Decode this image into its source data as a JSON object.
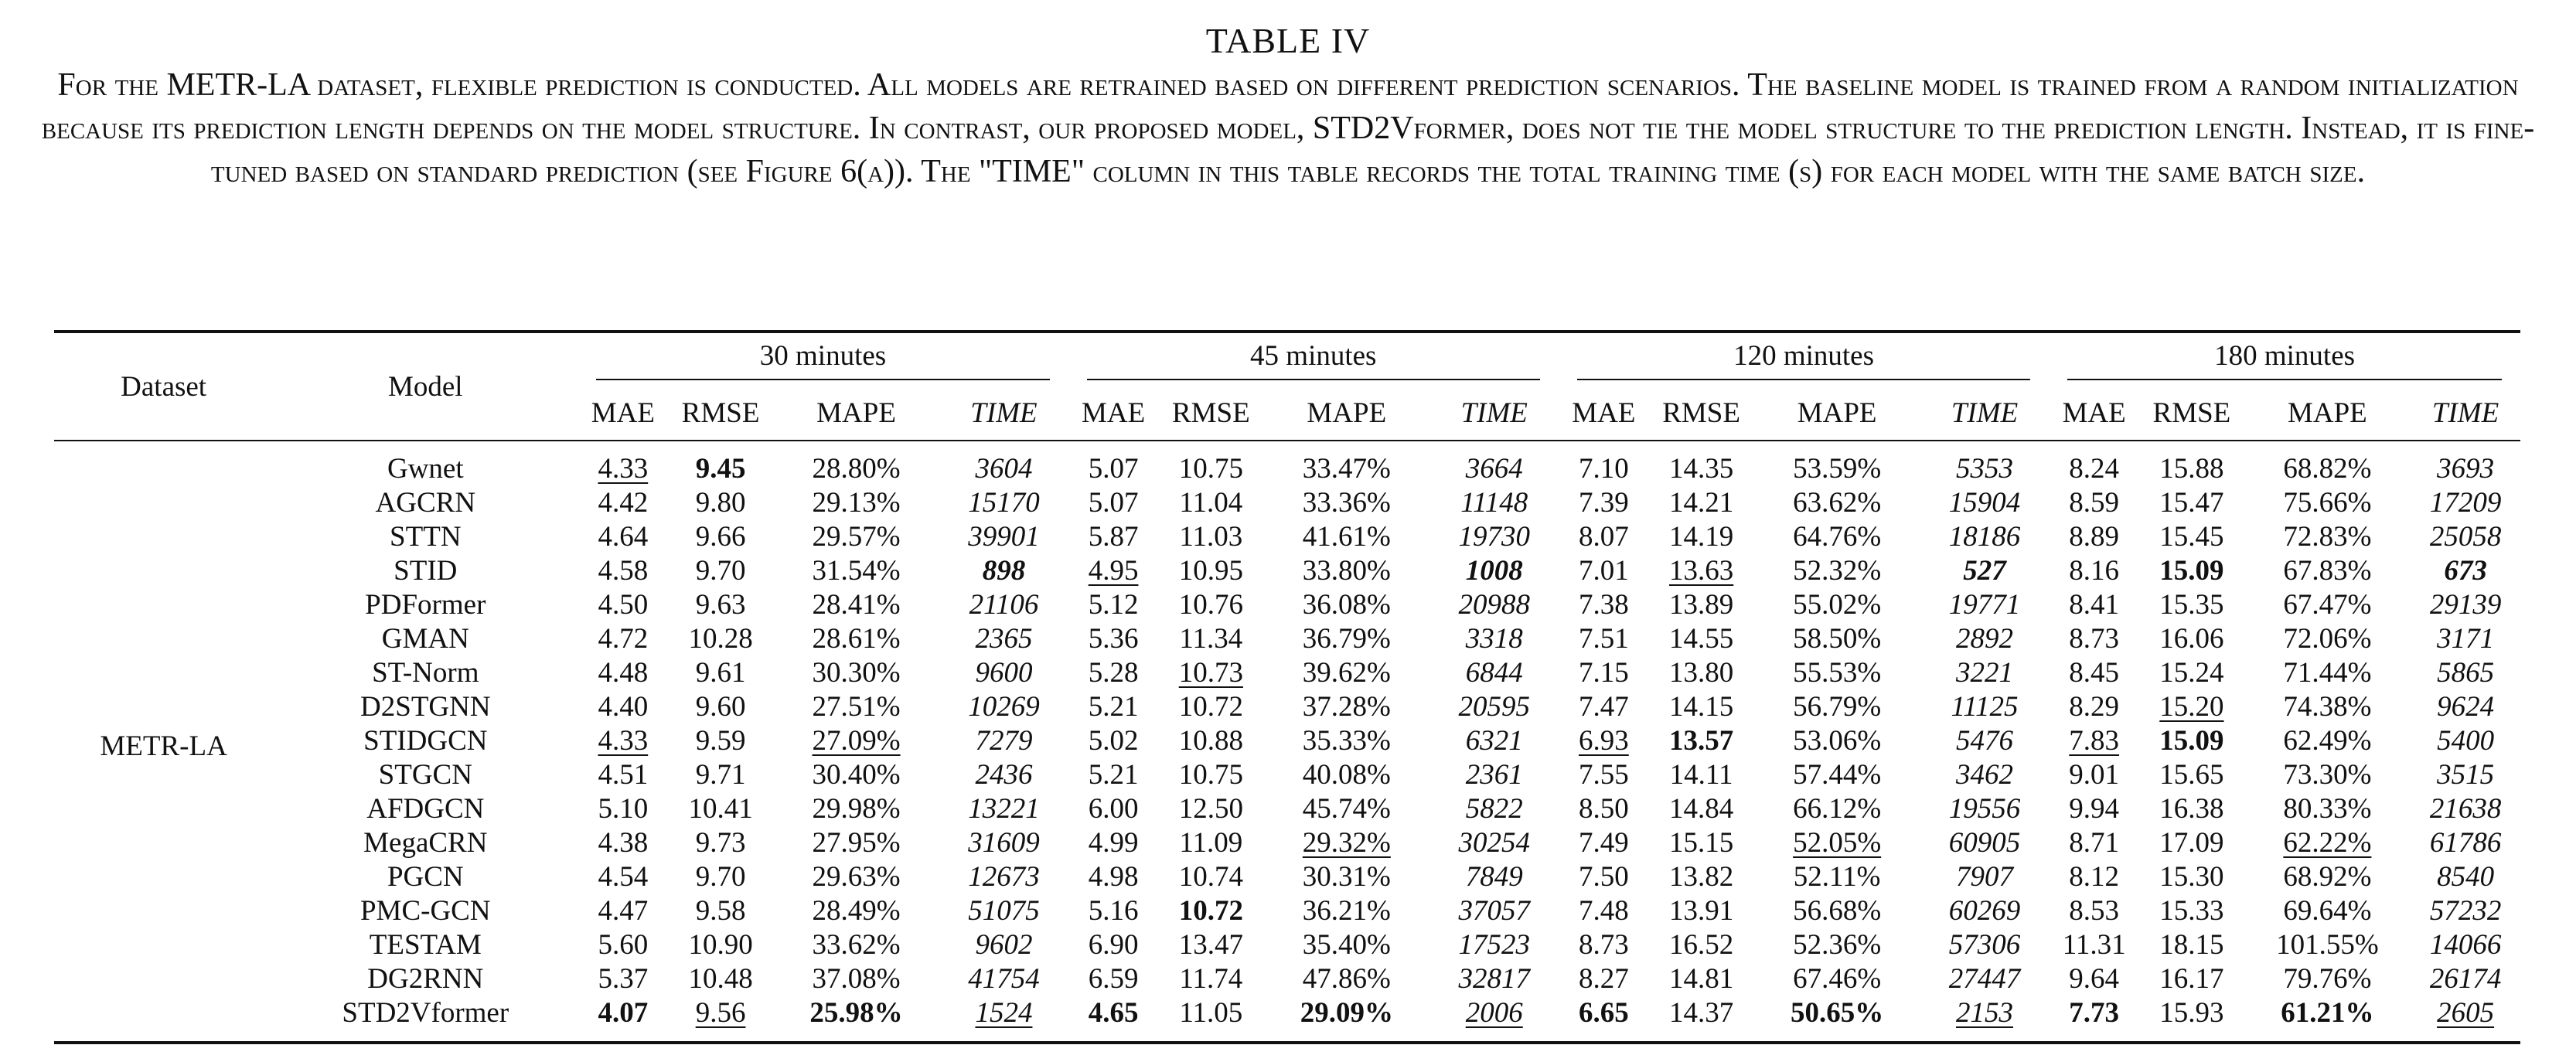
{
  "caption": {
    "title": "TABLE IV",
    "text": "For the METR-LA dataset, flexible prediction is conducted. All models are retrained based on different prediction scenarios. The baseline model is trained from a random initialization because its prediction length depends on the model structure. In contrast, our proposed model, STD2Vformer, does not tie the model structure to the prediction length. Instead, it is fine-tuned based on standard prediction (see Figure 6(a)). The \"TIME\" column in this table records the total training time (s) for each model with the same batch size."
  },
  "table": {
    "dataset_header": "Dataset",
    "model_header": "Model",
    "dataset_value": "METR-LA",
    "groups": [
      "30 minutes",
      "45 minutes",
      "120 minutes",
      "180 minutes"
    ],
    "metrics": [
      "MAE",
      "RMSE",
      "MAPE",
      "TIME"
    ],
    "rows": [
      {
        "model": "Gwnet",
        "cells": [
          "4.33",
          "9.45",
          "28.80%",
          "3604",
          "5.07",
          "10.75",
          "33.47%",
          "3664",
          "7.10",
          "14.35",
          "53.59%",
          "5353",
          "8.24",
          "15.88",
          "68.82%",
          "3693"
        ]
      },
      {
        "model": "AGCRN",
        "cells": [
          "4.42",
          "9.80",
          "29.13%",
          "15170",
          "5.07",
          "11.04",
          "33.36%",
          "11148",
          "7.39",
          "14.21",
          "63.62%",
          "15904",
          "8.59",
          "15.47",
          "75.66%",
          "17209"
        ]
      },
      {
        "model": "STTN",
        "cells": [
          "4.64",
          "9.66",
          "29.57%",
          "39901",
          "5.87",
          "11.03",
          "41.61%",
          "19730",
          "8.07",
          "14.19",
          "64.76%",
          "18186",
          "8.89",
          "15.45",
          "72.83%",
          "25058"
        ]
      },
      {
        "model": "STID",
        "cells": [
          "4.58",
          "9.70",
          "31.54%",
          "898",
          "4.95",
          "10.95",
          "33.80%",
          "1008",
          "7.01",
          "13.63",
          "52.32%",
          "527",
          "8.16",
          "15.09",
          "67.83%",
          "673"
        ]
      },
      {
        "model": "PDFormer",
        "cells": [
          "4.50",
          "9.63",
          "28.41%",
          "21106",
          "5.12",
          "10.76",
          "36.08%",
          "20988",
          "7.38",
          "13.89",
          "55.02%",
          "19771",
          "8.41",
          "15.35",
          "67.47%",
          "29139"
        ]
      },
      {
        "model": "GMAN",
        "cells": [
          "4.72",
          "10.28",
          "28.61%",
          "2365",
          "5.36",
          "11.34",
          "36.79%",
          "3318",
          "7.51",
          "14.55",
          "58.50%",
          "2892",
          "8.73",
          "16.06",
          "72.06%",
          "3171"
        ]
      },
      {
        "model": "ST-Norm",
        "cells": [
          "4.48",
          "9.61",
          "30.30%",
          "9600",
          "5.28",
          "10.73",
          "39.62%",
          "6844",
          "7.15",
          "13.80",
          "55.53%",
          "3221",
          "8.45",
          "15.24",
          "71.44%",
          "5865"
        ]
      },
      {
        "model": "D2STGNN",
        "cells": [
          "4.40",
          "9.60",
          "27.51%",
          "10269",
          "5.21",
          "10.72",
          "37.28%",
          "20595",
          "7.47",
          "14.15",
          "56.79%",
          "11125",
          "8.29",
          "15.20",
          "74.38%",
          "9624"
        ]
      },
      {
        "model": "STIDGCN",
        "cells": [
          "4.33",
          "9.59",
          "27.09%",
          "7279",
          "5.02",
          "10.88",
          "35.33%",
          "6321",
          "6.93",
          "13.57",
          "53.06%",
          "5476",
          "7.83",
          "15.09",
          "62.49%",
          "5400"
        ]
      },
      {
        "model": "STGCN",
        "cells": [
          "4.51",
          "9.71",
          "30.40%",
          "2436",
          "5.21",
          "10.75",
          "40.08%",
          "2361",
          "7.55",
          "14.11",
          "57.44%",
          "3462",
          "9.01",
          "15.65",
          "73.30%",
          "3515"
        ]
      },
      {
        "model": "AFDGCN",
        "cells": [
          "5.10",
          "10.41",
          "29.98%",
          "13221",
          "6.00",
          "12.50",
          "45.74%",
          "5822",
          "8.50",
          "14.84",
          "66.12%",
          "19556",
          "9.94",
          "16.38",
          "80.33%",
          "21638"
        ]
      },
      {
        "model": "MegaCRN",
        "cells": [
          "4.38",
          "9.73",
          "27.95%",
          "31609",
          "4.99",
          "11.09",
          "29.32%",
          "30254",
          "7.49",
          "15.15",
          "52.05%",
          "60905",
          "8.71",
          "17.09",
          "62.22%",
          "61786"
        ]
      },
      {
        "model": "PGCN",
        "cells": [
          "4.54",
          "9.70",
          "29.63%",
          "12673",
          "4.98",
          "10.74",
          "30.31%",
          "7849",
          "7.50",
          "13.82",
          "52.11%",
          "7907",
          "8.12",
          "15.30",
          "68.92%",
          "8540"
        ]
      },
      {
        "model": "PMC-GCN",
        "cells": [
          "4.47",
          "9.58",
          "28.49%",
          "51075",
          "5.16",
          "10.72",
          "36.21%",
          "37057",
          "7.48",
          "13.91",
          "56.68%",
          "60269",
          "8.53",
          "15.33",
          "69.64%",
          "57232"
        ]
      },
      {
        "model": "TESTAM",
        "cells": [
          "5.60",
          "10.90",
          "33.62%",
          "9602",
          "6.90",
          "13.47",
          "35.40%",
          "17523",
          "8.73",
          "16.52",
          "52.36%",
          "57306",
          "11.31",
          "18.15",
          "101.55%",
          "14066"
        ]
      },
      {
        "model": "DG2RNN",
        "cells": [
          "5.37",
          "10.48",
          "37.08%",
          "41754",
          "6.59",
          "11.74",
          "47.86%",
          "32817",
          "8.27",
          "14.81",
          "67.46%",
          "27447",
          "9.64",
          "16.17",
          "79.76%",
          "26174"
        ]
      },
      {
        "model": "STD2Vformer",
        "cells": [
          "4.07",
          "9.56",
          "25.98%",
          "1524",
          "4.65",
          "11.05",
          "29.09%",
          "2006",
          "6.65",
          "14.37",
          "50.65%",
          "2153",
          "7.73",
          "15.93",
          "61.21%",
          "2605"
        ]
      }
    ],
    "bold": [
      [
        0,
        1
      ],
      [
        3,
        3
      ],
      [
        3,
        7
      ],
      [
        3,
        11
      ],
      [
        3,
        13
      ],
      [
        3,
        15
      ],
      [
        8,
        9
      ],
      [
        8,
        13
      ],
      [
        13,
        5
      ],
      [
        16,
        0
      ],
      [
        16,
        2
      ],
      [
        16,
        4
      ],
      [
        16,
        6
      ],
      [
        16,
        8
      ],
      [
        16,
        10
      ],
      [
        16,
        12
      ],
      [
        16,
        14
      ]
    ],
    "underline": [
      [
        0,
        0
      ],
      [
        3,
        4
      ],
      [
        3,
        9
      ],
      [
        6,
        5
      ],
      [
        7,
        13
      ],
      [
        8,
        0
      ],
      [
        8,
        2
      ],
      [
        8,
        8
      ],
      [
        8,
        12
      ],
      [
        11,
        6
      ],
      [
        11,
        10
      ],
      [
        11,
        14
      ],
      [
        16,
        1
      ],
      [
        16,
        3
      ],
      [
        16,
        7
      ],
      [
        16,
        11
      ],
      [
        16,
        15
      ]
    ]
  }
}
